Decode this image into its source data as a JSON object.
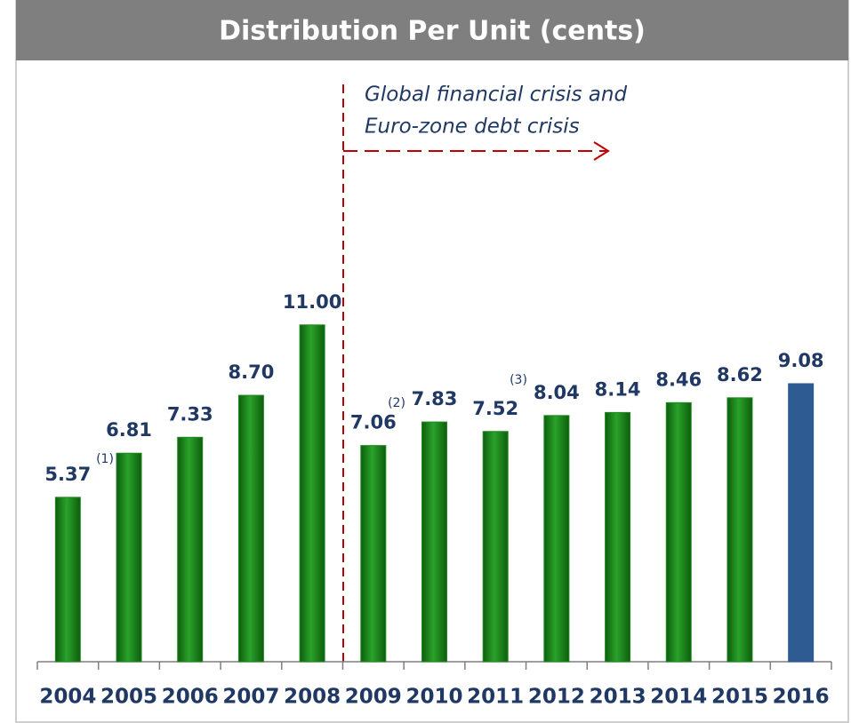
{
  "chart_data": {
    "type": "bar",
    "title": "Distribution Per Unit (cents)",
    "categories": [
      "2004",
      "2005",
      "2006",
      "2007",
      "2008",
      "2009",
      "2010",
      "2011",
      "2012",
      "2013",
      "2014",
      "2015",
      "2016"
    ],
    "values": [
      5.37,
      6.81,
      7.33,
      8.7,
      11.0,
      7.06,
      7.83,
      7.52,
      8.04,
      8.14,
      8.46,
      8.62,
      9.08
    ],
    "value_labels": [
      "5.37",
      "6.81",
      "7.33",
      "8.70",
      "11.00",
      "7.06",
      "7.83",
      "7.52",
      "8.04",
      "8.14",
      "8.46",
      "8.62",
      "9.08"
    ],
    "colors": [
      "#1f8a1f",
      "#1f8a1f",
      "#1f8a1f",
      "#1f8a1f",
      "#1f8a1f",
      "#1f8a1f",
      "#1f8a1f",
      "#1f8a1f",
      "#1f8a1f",
      "#1f8a1f",
      "#1f8a1f",
      "#1f8a1f",
      "#2f5b93"
    ],
    "ylim": [
      0,
      19
    ],
    "annotations": [
      "Global financial crisis and",
      "Euro-zone debt crisis"
    ],
    "footnotes": [
      "(1)",
      "(2)",
      "(3)"
    ]
  }
}
